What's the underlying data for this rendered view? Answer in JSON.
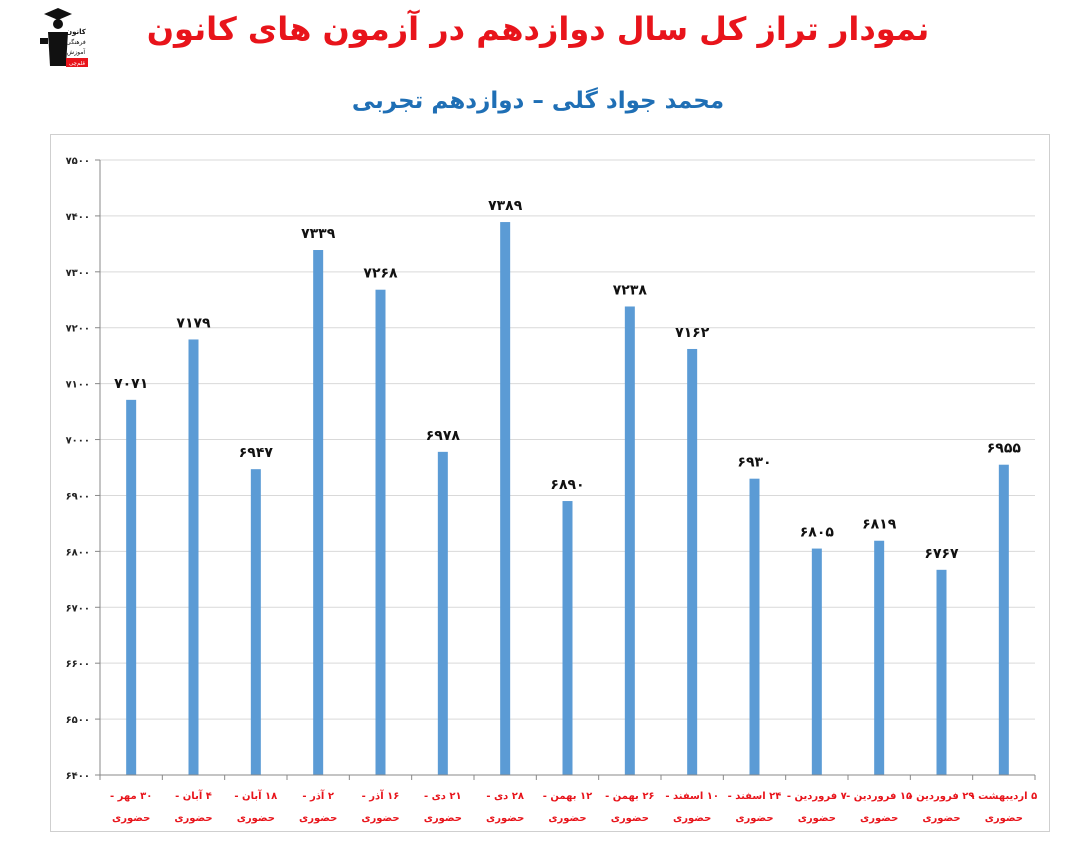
{
  "header": {
    "title": "نمودار تراز کل سال دوازدهم در آزمون های کانون",
    "subtitle": "محمد جواد گلی – دوازدهم تجربی",
    "logo_text": [
      "کانون",
      "فرهنگی",
      "آموزش",
      "قلم‌چی"
    ]
  },
  "colors": {
    "title": "#e8141b",
    "subtitle": "#1f6fb5",
    "bar": "#5b9bd5",
    "category_text": "#e8141b"
  },
  "chart_data": {
    "type": "bar",
    "categories": [
      "۳۰ مهر -",
      "۴ آبان -",
      "۱۸ آبان -",
      "۲ آذر -",
      "۱۶ آذر -",
      "۲۱ دی -",
      "۲۸ دی -",
      "۱۲ بهمن -",
      "۲۶ بهمن -",
      "۱۰ اسفند -",
      "۲۴ اسفند -",
      "۷ فروردین -",
      "۱۵ فروردین -",
      "۲۹ فروردین -",
      "۵ اردیبهشت -"
    ],
    "category_sublabel": "حضوری",
    "values": [
      7071,
      7179,
      6947,
      7339,
      7268,
      6978,
      7389,
      6890,
      7238,
      7162,
      6930,
      6805,
      6819,
      6767,
      6955
    ],
    "data_labels": [
      "۷۰۷۱",
      "۷۱۷۹",
      "۶۹۴۷",
      "۷۳۳۹",
      "۷۲۶۸",
      "۶۹۷۸",
      "۷۳۸۹",
      "۶۸۹۰",
      "۷۲۳۸",
      "۷۱۶۲",
      "۶۹۳۰",
      "۶۸۰۵",
      "۶۸۱۹",
      "۶۷۶۷",
      "۶۹۵۵"
    ],
    "ylim": [
      6400,
      7500
    ],
    "yticks": [
      7500,
      7400,
      7300,
      7200,
      7100,
      7000,
      6900,
      6800,
      6700,
      6600,
      6500,
      6400
    ],
    "ytick_labels": [
      "۷۵۰۰",
      "۷۴۰۰",
      "۷۳۰۰",
      "۷۲۰۰",
      "۷۱۰۰",
      "۷۰۰۰",
      "۶۹۰۰",
      "۶۸۰۰",
      "۶۷۰۰",
      "۶۶۰۰",
      "۶۵۰۰",
      "۶۴۰۰"
    ],
    "grid": true,
    "xlabel": "",
    "ylabel": ""
  }
}
